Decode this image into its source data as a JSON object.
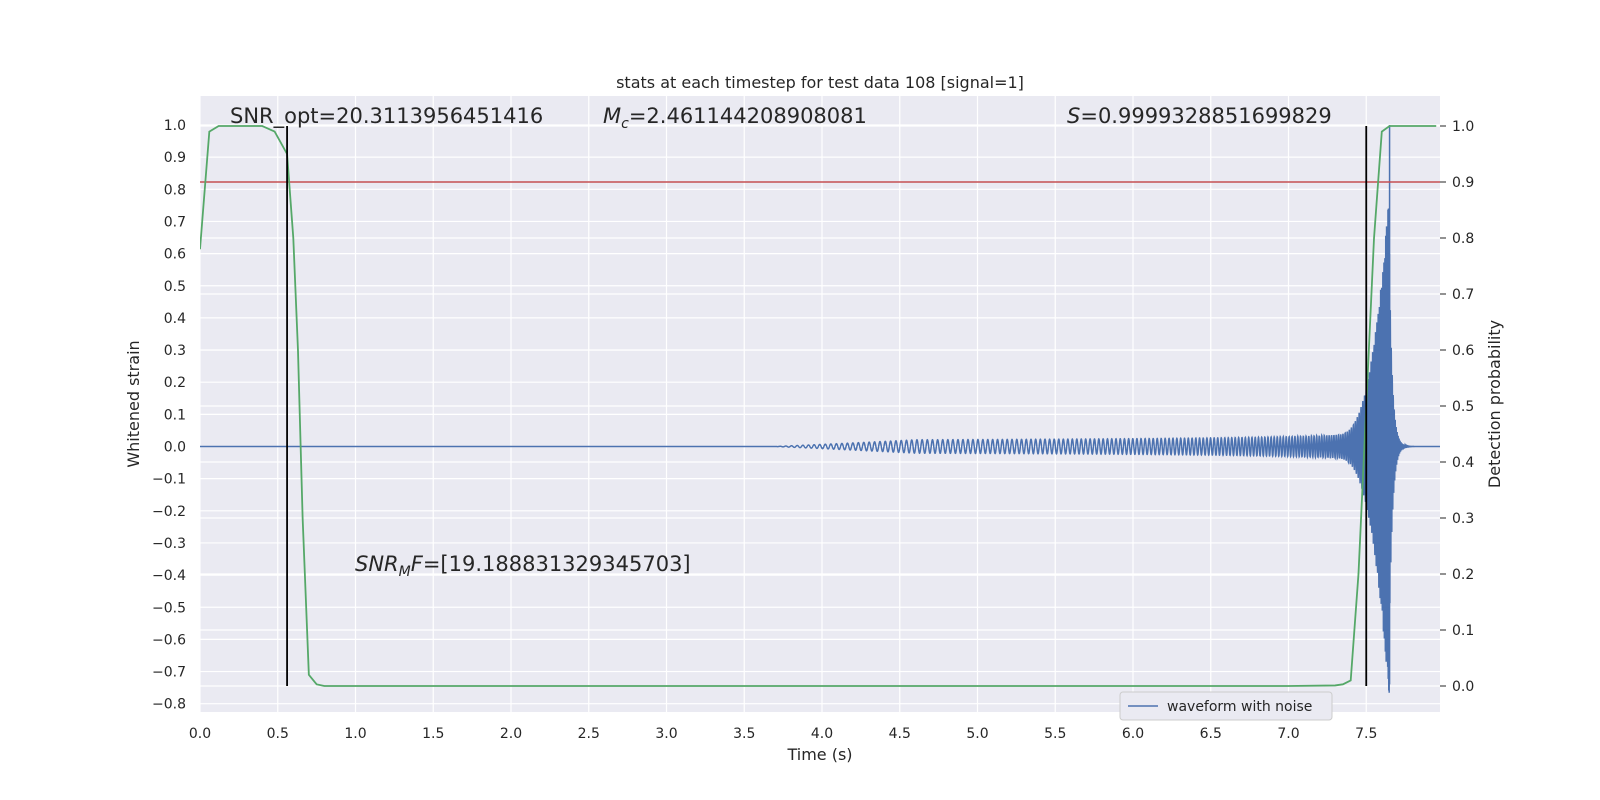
{
  "chart_data": {
    "type": "line",
    "title": "stats at each timestep for test data 108 [signal=1]",
    "xlabel": "Time (s)",
    "ylabel": "Whitened strain",
    "y2label": "Detection probability",
    "xlim": [
      0.0,
      8.0
    ],
    "ylim": [
      -0.82,
      1.08
    ],
    "y2lim": [
      -0.045,
      1.03
    ],
    "xticks": [
      0.0,
      0.5,
      1.0,
      1.5,
      2.0,
      2.5,
      3.0,
      3.5,
      4.0,
      4.5,
      5.0,
      5.5,
      6.0,
      6.5,
      7.0,
      7.5
    ],
    "xtick_labels": [
      "0.0",
      "0.5",
      "1.0",
      "1.5",
      "2.0",
      "2.5",
      "3.0",
      "3.5",
      "4.0",
      "4.5",
      "5.0",
      "5.5",
      "6.0",
      "6.5",
      "7.0",
      "7.5"
    ],
    "yticks": [
      1.0,
      0.9,
      0.8,
      0.7,
      0.6,
      0.5,
      0.4,
      0.3,
      0.2,
      0.1,
      0.0,
      -0.1,
      -0.2,
      -0.3,
      -0.4,
      -0.5,
      -0.6,
      -0.7,
      -0.8
    ],
    "ytick_labels": [
      "1.0",
      "0.9",
      "0.8",
      "0.7",
      "0.6",
      "0.5",
      "0.4",
      "0.3",
      "0.2",
      "0.1",
      "0.0",
      "−0.1",
      "−0.2",
      "−0.3",
      "−0.4",
      "−0.5",
      "−0.6",
      "−0.7",
      "−0.8"
    ],
    "y2ticks": [
      1.0,
      0.9,
      0.8,
      0.7,
      0.6,
      0.5,
      0.4,
      0.3,
      0.2,
      0.1,
      0.0
    ],
    "y2tick_labels": [
      "1.0",
      "0.9",
      "0.8",
      "0.7",
      "0.6",
      "0.5",
      "0.4",
      "0.3",
      "0.2",
      "0.1",
      "0.0"
    ],
    "grid": true,
    "legend_placement": "bottom-right",
    "series": [
      {
        "name": "waveform with noise",
        "axis": "left",
        "color": "#4c72b0",
        "description_params": {
          "onset_time": 3.7,
          "merger_time": 7.65,
          "peak_amplitude": 1.0,
          "min_amplitude": -0.74
        }
      },
      {
        "axis": "right",
        "color": "#55a868",
        "x": [
          0.0,
          0.06,
          0.12,
          0.2,
          0.3,
          0.4,
          0.48,
          0.56,
          0.6,
          0.63,
          0.66,
          0.7,
          0.75,
          0.8,
          1.0,
          2.0,
          3.0,
          4.0,
          5.0,
          6.0,
          7.0,
          7.3,
          7.35,
          7.4,
          7.45,
          7.5,
          7.55,
          7.6,
          7.65,
          7.7,
          7.8,
          7.95
        ],
        "y": [
          0.78,
          0.99,
          1.0,
          1.0,
          1.0,
          1.0,
          0.99,
          0.95,
          0.8,
          0.6,
          0.3,
          0.02,
          0.003,
          0.0,
          0.0,
          0.0,
          0.0,
          0.0,
          0.0,
          0.0,
          0.0,
          0.001,
          0.003,
          0.01,
          0.2,
          0.5,
          0.8,
          0.99,
          1.0,
          1.0,
          1.0,
          1.0
        ]
      },
      {
        "axis": "right",
        "color": "#c44e52",
        "kind": "hline",
        "y": 0.9
      }
    ],
    "vlines": [
      {
        "x": 0.56,
        "y2_from": 0.0,
        "y2_to": 1.0,
        "color": "#000000"
      },
      {
        "x": 7.5,
        "y2_from": 0.0,
        "y2_to": 1.0,
        "color": "#000000"
      }
    ],
    "annotations": {
      "snr_opt": "SNR_opt=20.3113956451416",
      "mc_symbol": "M",
      "mc_sub": "c",
      "mc_value": "=2.461144208908081",
      "s_symbol": "S",
      "s_value": "=0.9999328851699829",
      "snr_mf_symbol": "SNR",
      "snr_mf_sub": "M",
      "snr_mf_f": "F",
      "snr_mf_value": "=[19.188831329345703]"
    }
  }
}
